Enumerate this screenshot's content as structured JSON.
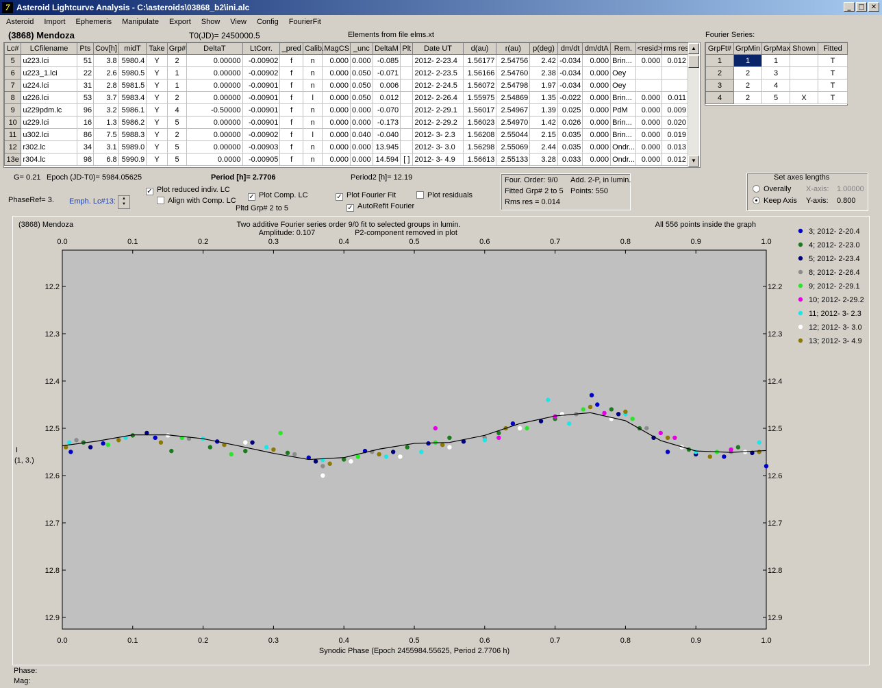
{
  "window": {
    "title": "Asteroid Lightcurve Analysis - C:\\asteroids\\03868_b2\\ini.alc",
    "minimize": "_",
    "restore": "□",
    "close": "✕",
    "app_icon": "7"
  },
  "menu": [
    "Asteroid",
    "Import",
    "Ephemeris",
    "Manipulate",
    "Export",
    "Show",
    "View",
    "Config",
    "FourierFit"
  ],
  "info": {
    "object": "(3868) Mendoza",
    "t0": "T0(JD)= 2450000.5",
    "elements": "Elements from file elms.xt"
  },
  "lc_table": {
    "headers": [
      "Lc#",
      "LCfilename",
      "Pts",
      "Cov[h]",
      "midT",
      "Take",
      "Grp#",
      "DeltaT",
      "LtCorr.",
      "_pred",
      "Calib.",
      "MagCS",
      "_unc",
      "DeltaM",
      "Plt",
      "Date UT",
      "d(au)",
      "r(au)",
      "p(deg)",
      "dm/dt",
      "dm/dtA",
      "Rem.",
      "<resid>",
      "rms res"
    ],
    "rows": [
      [
        "5",
        "u223.lci",
        "51",
        "3.8",
        "5980.4",
        "Y",
        "2",
        "0.00000",
        "-0.00902",
        "f",
        "n",
        "0.000",
        "0.000",
        "-0.085",
        "",
        "2012- 2-23.4",
        "1.56177",
        "2.54756",
        "2.42",
        "-0.034",
        "0.000",
        "Brin...",
        "0.000",
        "0.012"
      ],
      [
        "6",
        "u223_1.lci",
        "22",
        "2.6",
        "5980.5",
        "Y",
        "1",
        "0.00000",
        "-0.00902",
        "f",
        "n",
        "0.000",
        "0.050",
        "-0.071",
        "",
        "2012- 2-23.5",
        "1.56166",
        "2.54760",
        "2.38",
        "-0.034",
        "0.000",
        "Oey",
        "",
        ""
      ],
      [
        "7",
        "u224.lci",
        "31",
        "2.8",
        "5981.5",
        "Y",
        "1",
        "0.00000",
        "-0.00901",
        "f",
        "n",
        "0.000",
        "0.050",
        "0.006",
        "",
        "2012- 2-24.5",
        "1.56072",
        "2.54798",
        "1.97",
        "-0.034",
        "0.000",
        "Oey",
        "",
        ""
      ],
      [
        "8",
        "u226.lci",
        "53",
        "3.7",
        "5983.4",
        "Y",
        "2",
        "0.00000",
        "-0.00901",
        "f",
        "l",
        "0.000",
        "0.050",
        "0.012",
        "",
        "2012- 2-26.4",
        "1.55975",
        "2.54869",
        "1.35",
        "-0.022",
        "0.000",
        "Brin...",
        "0.000",
        "0.011"
      ],
      [
        "9",
        "u229pdm.lc",
        "96",
        "3.2",
        "5986.1",
        "Y",
        "4",
        "-0.50000",
        "-0.00901",
        "f",
        "n",
        "0.000",
        "0.000",
        "-0.070",
        "",
        "2012- 2-29.1",
        "1.56017",
        "2.54967",
        "1.39",
        "0.025",
        "0.000",
        "PdM",
        "0.000",
        "0.009"
      ],
      [
        "10",
        "u229.lci",
        "16",
        "1.3",
        "5986.2",
        "Y",
        "5",
        "0.00000",
        "-0.00901",
        "f",
        "n",
        "0.000",
        "0.000",
        "-0.173",
        "",
        "2012- 2-29.2",
        "1.56023",
        "2.54970",
        "1.42",
        "0.026",
        "0.000",
        "Brin...",
        "0.000",
        "0.020"
      ],
      [
        "11",
        "u302.lci",
        "86",
        "7.5",
        "5988.3",
        "Y",
        "2",
        "0.00000",
        "-0.00902",
        "f",
        "l",
        "0.000",
        "0.040",
        "-0.040",
        "",
        "2012- 3- 2.3",
        "1.56208",
        "2.55044",
        "2.15",
        "0.035",
        "0.000",
        "Brin...",
        "0.000",
        "0.019"
      ],
      [
        "12",
        "r302.lc",
        "34",
        "3.1",
        "5989.0",
        "Y",
        "5",
        "0.00000",
        "-0.00903",
        "f",
        "n",
        "0.000",
        "0.000",
        "13.945",
        "",
        "2012- 3- 3.0",
        "1.56298",
        "2.55069",
        "2.44",
        "0.035",
        "0.000",
        "Ondr...",
        "0.000",
        "0.013"
      ],
      [
        "13e",
        "r304.lc",
        "98",
        "6.8",
        "5990.9",
        "Y",
        "5",
        "0.0000",
        "-0.00905",
        "f",
        "n",
        "0.000",
        "0.000",
        "14.594",
        "[ ]",
        "2012- 3- 4.9",
        "1.56613",
        "2.55133",
        "3.28",
        "0.033",
        "0.000",
        "Ondr...",
        "0.000",
        "0.012"
      ]
    ]
  },
  "fourier_table": {
    "caption": "Fourier Series:",
    "headers": [
      "GrpFt#",
      "GrpMin",
      "GrpMax",
      "Shown",
      "Fitted"
    ],
    "rows": [
      [
        "1",
        "1",
        "1",
        "",
        "T"
      ],
      [
        "2",
        "2",
        "3",
        "",
        "T"
      ],
      [
        "3",
        "2",
        "4",
        "",
        "T"
      ],
      [
        "4",
        "2",
        "5",
        "X",
        "T"
      ]
    ]
  },
  "params": {
    "g": "G= 0.21",
    "epoch": "Epoch (JD-T0)= 5984.05625",
    "period": "Period [h]= 2.7706",
    "period2": "Period2 [h]= 12.19",
    "phaseref": "PhaseRef= 3.",
    "emph": "Emph. Lc#13:",
    "pltd_grp": "Pltd Grp#  2   to    5"
  },
  "checks": [
    {
      "label": "Plot reduced indiv. LC",
      "checked": true
    },
    {
      "label": "Align with Comp. LC",
      "checked": false
    },
    {
      "label": "Plot Comp. LC",
      "checked": true
    },
    {
      "label": "Plot Fourier Fit",
      "checked": true
    },
    {
      "label": "AutoRefit Fourier",
      "checked": true
    },
    {
      "label": "Plot residuals",
      "checked": false
    }
  ],
  "fit_info": {
    "order": "Four. Order:  9/0",
    "add": "Add. 2-P, in lumin.",
    "fitted": "Fitted Grp# 2 to 5",
    "points": "Points: 550",
    "rms": "Rms res     = 0.014"
  },
  "axes_box": {
    "title": "Set axes lengths",
    "overally": "Overally",
    "keep": "Keep Axis",
    "xaxis_label": "X-axis:",
    "xaxis_val": "1.00000",
    "yaxis_label": "Y-axis:",
    "yaxis_val": "0.800"
  },
  "plot": {
    "object": "(3868) Mendoza",
    "title1": "Two additive Fourier series order 9/0 fit to selected groups in lumin.",
    "title2": "Amplitude: 0.107",
    "title3": "P2-component removed in plot",
    "points_note": "All 556 points inside the graph",
    "ylabel1": "I",
    "ylabel2": "(1, 3.)"
  },
  "chart_data": {
    "type": "scatter",
    "xlabel": "Synodic Phase (Epoch 2455984.55625, Period 2.7706 h)",
    "ylabel": "I (1, 3.)",
    "xlim": [
      0.0,
      1.0
    ],
    "ylim": [
      12.9,
      12.1
    ],
    "x_ticks": [
      "0.0",
      "0.1",
      "0.2",
      "0.3",
      "0.4",
      "0.5",
      "0.6",
      "0.7",
      "0.8",
      "0.9",
      "1.0"
    ],
    "y_ticks": [
      "12.2",
      "12.3",
      "12.4",
      "12.5",
      "12.6",
      "12.7",
      "12.8",
      "12.9"
    ],
    "fit_curve": {
      "x": [
        0.0,
        0.05,
        0.1,
        0.15,
        0.2,
        0.25,
        0.3,
        0.35,
        0.4,
        0.45,
        0.5,
        0.55,
        0.6,
        0.65,
        0.7,
        0.75,
        0.8,
        0.85,
        0.9,
        0.95,
        1.0
      ],
      "y": [
        12.537,
        12.527,
        12.514,
        12.514,
        12.522,
        12.537,
        12.553,
        12.566,
        12.562,
        12.544,
        12.532,
        12.53,
        12.515,
        12.49,
        12.474,
        12.467,
        12.484,
        12.526,
        12.548,
        12.551,
        12.547
      ]
    },
    "series": [
      {
        "name": "3; 2012- 2-20.4",
        "color": "#0000c8",
        "points": [
          [
            0.012,
            12.55
          ],
          [
            0.058,
            12.532
          ],
          [
            0.132,
            12.52
          ],
          [
            0.22,
            12.528
          ],
          [
            0.35,
            12.562
          ],
          [
            0.43,
            12.548
          ],
          [
            0.52,
            12.532
          ],
          [
            0.64,
            12.49
          ],
          [
            0.752,
            12.43
          ],
          [
            0.76,
            12.45
          ],
          [
            0.86,
            12.55
          ],
          [
            0.94,
            12.56
          ],
          [
            1.0,
            12.58
          ]
        ]
      },
      {
        "name": "4; 2012- 2-23.0",
        "color": "#1e7a1e",
        "points": [
          [
            0.03,
            12.53
          ],
          [
            0.1,
            12.515
          ],
          [
            0.155,
            12.548
          ],
          [
            0.21,
            12.54
          ],
          [
            0.26,
            12.548
          ],
          [
            0.32,
            12.552
          ],
          [
            0.4,
            12.566
          ],
          [
            0.49,
            12.54
          ],
          [
            0.55,
            12.52
          ],
          [
            0.62,
            12.51
          ],
          [
            0.7,
            12.48
          ],
          [
            0.78,
            12.46
          ],
          [
            0.82,
            12.5
          ],
          [
            0.89,
            12.545
          ],
          [
            0.96,
            12.54
          ]
        ]
      },
      {
        "name": "5; 2012- 2-23.4",
        "color": "#00007a",
        "points": [
          [
            0.04,
            12.54
          ],
          [
            0.12,
            12.51
          ],
          [
            0.27,
            12.53
          ],
          [
            0.36,
            12.57
          ],
          [
            0.47,
            12.55
          ],
          [
            0.57,
            12.528
          ],
          [
            0.68,
            12.485
          ],
          [
            0.79,
            12.47
          ],
          [
            0.84,
            12.52
          ],
          [
            0.9,
            12.555
          ],
          [
            0.98,
            12.552
          ]
        ]
      },
      {
        "name": "8; 2012- 2-26.4",
        "color": "#8c8c8c",
        "points": [
          [
            0.02,
            12.525
          ],
          [
            0.18,
            12.522
          ],
          [
            0.33,
            12.555
          ],
          [
            0.37,
            12.58
          ],
          [
            0.44,
            12.55
          ],
          [
            0.6,
            12.52
          ],
          [
            0.73,
            12.47
          ],
          [
            0.83,
            12.5
          ],
          [
            0.95,
            12.55
          ]
        ]
      },
      {
        "name": "9; 2012- 2-29.1",
        "color": "#28e628",
        "points": [
          [
            0.065,
            12.535
          ],
          [
            0.17,
            12.52
          ],
          [
            0.24,
            12.555
          ],
          [
            0.31,
            12.51
          ],
          [
            0.42,
            12.56
          ],
          [
            0.53,
            12.53
          ],
          [
            0.66,
            12.5
          ],
          [
            0.74,
            12.46
          ],
          [
            0.81,
            12.48
          ],
          [
            0.93,
            12.55
          ]
        ]
      },
      {
        "name": "10; 2012- 2-29.2",
        "color": "#e600e6",
        "points": [
          [
            0.53,
            12.5
          ],
          [
            0.62,
            12.52
          ],
          [
            0.7,
            12.475
          ],
          [
            0.77,
            12.468
          ],
          [
            0.85,
            12.51
          ],
          [
            0.87,
            12.52
          ],
          [
            0.95,
            12.545
          ]
        ]
      },
      {
        "name": "11; 2012- 3- 2.3",
        "color": "#1ee6e6",
        "points": [
          [
            0.01,
            12.53
          ],
          [
            0.09,
            12.52
          ],
          [
            0.2,
            12.522
          ],
          [
            0.29,
            12.54
          ],
          [
            0.37,
            12.567
          ],
          [
            0.46,
            12.56
          ],
          [
            0.51,
            12.55
          ],
          [
            0.6,
            12.525
          ],
          [
            0.69,
            12.44
          ],
          [
            0.72,
            12.49
          ],
          [
            0.8,
            12.47
          ],
          [
            0.9,
            12.55
          ],
          [
            0.99,
            12.53
          ]
        ]
      },
      {
        "name": "12; 2012- 3- 3.0",
        "color": "#ffffff",
        "points": [
          [
            0.15,
            12.515
          ],
          [
            0.26,
            12.53
          ],
          [
            0.37,
            12.6
          ],
          [
            0.41,
            12.57
          ],
          [
            0.48,
            12.56
          ],
          [
            0.55,
            12.54
          ],
          [
            0.65,
            12.5
          ],
          [
            0.71,
            12.47
          ],
          [
            0.78,
            12.48
          ],
          [
            0.88,
            12.54
          ],
          [
            0.97,
            12.55
          ]
        ]
      },
      {
        "name": "13; 2012- 3- 4.9",
        "color": "#8c7a00",
        "points": [
          [
            0.005,
            12.54
          ],
          [
            0.08,
            12.525
          ],
          [
            0.14,
            12.53
          ],
          [
            0.23,
            12.535
          ],
          [
            0.3,
            12.545
          ],
          [
            0.38,
            12.575
          ],
          [
            0.45,
            12.555
          ],
          [
            0.54,
            12.535
          ],
          [
            0.63,
            12.5
          ],
          [
            0.75,
            12.455
          ],
          [
            0.8,
            12.465
          ],
          [
            0.86,
            12.52
          ],
          [
            0.92,
            12.56
          ],
          [
            0.99,
            12.55
          ]
        ]
      }
    ]
  },
  "status": {
    "phase": "Phase:",
    "mag": "Mag:"
  }
}
